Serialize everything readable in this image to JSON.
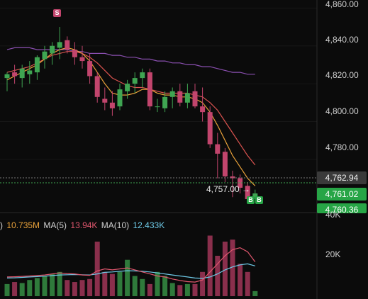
{
  "price_axis": {
    "labels": [
      "4,860.00",
      "4,840.00",
      "4,820.00",
      "4,800.00",
      "4,780.00"
    ],
    "values": [
      4860,
      4840,
      4820,
      4800,
      4780
    ]
  },
  "price_tags": {
    "current": "4,762.94",
    "bid": "4,761.02",
    "last": "4,760.36"
  },
  "low_marker": {
    "label": "4,757.00 →"
  },
  "trade_markers": {
    "sell": "S",
    "buy1": "B",
    "buy2": "B"
  },
  "volume_legend": {
    "prefix": ")",
    "value": "10.735M",
    "ma5_label": "MA(5)",
    "ma5_value": "13.94K",
    "ma10_label": "MA(10)",
    "ma10_value": "12.433K"
  },
  "volume_axis": {
    "labels": [
      "40K",
      "20K"
    ],
    "values": [
      40000,
      20000
    ]
  },
  "colors": {
    "up": "#3fa552",
    "down": "#c2456d",
    "ma_orange": "#e8a13a",
    "ma_red": "#d9534f",
    "ma_purple": "#8a4fb0",
    "vol_ma5": "#e0576e",
    "vol_ma10": "#6ec9e6"
  },
  "chart_data": {
    "type": "candlestick",
    "price_range": [
      4753,
      4862
    ],
    "candles": [
      {
        "o": 4823,
        "h": 4826,
        "l": 4816,
        "c": 4825
      },
      {
        "o": 4826,
        "h": 4830,
        "l": 4820,
        "c": 4824
      },
      {
        "o": 4823,
        "h": 4830,
        "l": 4818,
        "c": 4828
      },
      {
        "o": 4825,
        "h": 4832,
        "l": 4820,
        "c": 4827
      },
      {
        "o": 4826,
        "h": 4835,
        "l": 4822,
        "c": 4834
      },
      {
        "o": 4833,
        "h": 4840,
        "l": 4828,
        "c": 4837
      },
      {
        "o": 4836,
        "h": 4842,
        "l": 4830,
        "c": 4840
      },
      {
        "o": 4839,
        "h": 4850,
        "l": 4833,
        "c": 4842
      },
      {
        "o": 4843,
        "h": 4845,
        "l": 4836,
        "c": 4838
      },
      {
        "o": 4838,
        "h": 4842,
        "l": 4830,
        "c": 4834
      },
      {
        "o": 4834,
        "h": 4840,
        "l": 4828,
        "c": 4832
      },
      {
        "o": 4832,
        "h": 4836,
        "l": 4820,
        "c": 4824
      },
      {
        "o": 4824,
        "h": 4826,
        "l": 4810,
        "c": 4813
      },
      {
        "o": 4812,
        "h": 4818,
        "l": 4806,
        "c": 4810
      },
      {
        "o": 4810,
        "h": 4816,
        "l": 4803,
        "c": 4807
      },
      {
        "o": 4808,
        "h": 4820,
        "l": 4806,
        "c": 4817
      },
      {
        "o": 4816,
        "h": 4822,
        "l": 4812,
        "c": 4820
      },
      {
        "o": 4820,
        "h": 4826,
        "l": 4815,
        "c": 4823
      },
      {
        "o": 4823,
        "h": 4828,
        "l": 4818,
        "c": 4826
      },
      {
        "o": 4826,
        "h": 4828,
        "l": 4806,
        "c": 4808
      },
      {
        "o": 4808,
        "h": 4812,
        "l": 4805,
        "c": 4808
      },
      {
        "o": 4807,
        "h": 4816,
        "l": 4805,
        "c": 4813
      },
      {
        "o": 4813,
        "h": 4818,
        "l": 4807,
        "c": 4816
      },
      {
        "o": 4816,
        "h": 4820,
        "l": 4808,
        "c": 4810
      },
      {
        "o": 4810,
        "h": 4820,
        "l": 4807,
        "c": 4815
      },
      {
        "o": 4816,
        "h": 4820,
        "l": 4807,
        "c": 4808
      },
      {
        "o": 4808,
        "h": 4818,
        "l": 4800,
        "c": 4805
      },
      {
        "o": 4805,
        "h": 4808,
        "l": 4786,
        "c": 4788
      },
      {
        "o": 4788,
        "h": 4794,
        "l": 4770,
        "c": 4783
      },
      {
        "o": 4784,
        "h": 4786,
        "l": 4768,
        "c": 4771
      },
      {
        "o": 4771,
        "h": 4774,
        "l": 4760,
        "c": 4770
      },
      {
        "o": 4770,
        "h": 4772,
        "l": 4762,
        "c": 4765
      },
      {
        "o": 4766,
        "h": 4768,
        "l": 4757,
        "c": 4759
      },
      {
        "o": 4760,
        "h": 4764,
        "l": 4759,
        "c": 4762
      }
    ],
    "ma_fast": [
      4822,
      4824,
      4826,
      4828,
      4830,
      4833,
      4836,
      4838,
      4839,
      4838,
      4836,
      4832,
      4826,
      4820,
      4815,
      4814,
      4814,
      4815,
      4817,
      4817,
      4815,
      4814,
      4814,
      4813,
      4813,
      4812,
      4810,
      4805,
      4798,
      4790,
      4782,
      4776,
      4770,
      4766
    ],
    "ma_mid": [
      4826,
      4827,
      4828,
      4829,
      4831,
      4833,
      4835,
      4836,
      4837,
      4837,
      4836,
      4834,
      4831,
      4827,
      4823,
      4821,
      4819,
      4818,
      4818,
      4817,
      4816,
      4815,
      4815,
      4815,
      4815,
      4814,
      4813,
      4810,
      4806,
      4800,
      4794,
      4788,
      4782,
      4777
    ],
    "ma_slow": [
      4838,
      4839,
      4839,
      4839,
      4838,
      4838,
      4838,
      4838,
      4838,
      4837,
      4837,
      4836,
      4836,
      4836,
      4835,
      4835,
      4834,
      4834,
      4833,
      4833,
      4832,
      4832,
      4831,
      4831,
      4830,
      4830,
      4829,
      4829,
      4828,
      4827,
      4826,
      4826,
      4825,
      4825
    ],
    "volume_range": [
      0,
      40000
    ],
    "volumes": [
      6000,
      7000,
      6500,
      8000,
      9000,
      10000,
      11000,
      12000,
      8000,
      7000,
      8000,
      8500,
      27000,
      12000,
      11000,
      12000,
      18000,
      10000,
      8500,
      6000,
      12000,
      10000,
      6500,
      5500,
      6000,
      6000,
      12000,
      30000,
      20000,
      27000,
      28000,
      16000,
      12000,
      2500
    ],
    "volume_ma5": [
      9500,
      9600,
      9800,
      10000,
      10200,
      10500,
      11000,
      11500,
      11200,
      11000,
      10500,
      10300,
      12500,
      13500,
      13000,
      13500,
      14000,
      13000,
      12000,
      11000,
      10000,
      9500,
      8500,
      7800,
      7200,
      7000,
      8000,
      12000,
      16000,
      20000,
      23000,
      24000,
      22000,
      17000
    ],
    "volume_ma10": [
      9000,
      9100,
      9300,
      9500,
      9700,
      9900,
      10200,
      10500,
      10600,
      10700,
      10600,
      10500,
      11000,
      11800,
      12000,
      12300,
      12600,
      12500,
      12300,
      12000,
      11500,
      11000,
      10500,
      10000,
      9500,
      9000,
      8800,
      9500,
      11000,
      13000,
      14500,
      15500,
      16000,
      15000
    ]
  }
}
